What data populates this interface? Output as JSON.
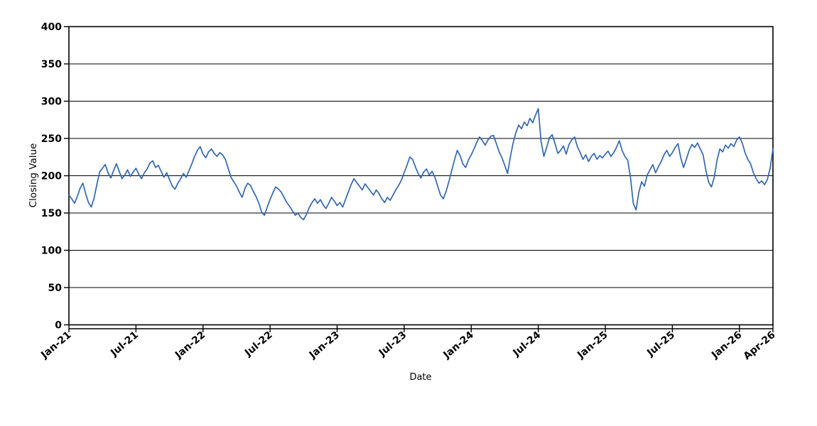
{
  "figure": {
    "background_color": "#ffffff",
    "axis_color": "#000000",
    "line_color": "#3366ae"
  },
  "chart_data": {
    "type": "line",
    "title": "",
    "xlabel": "Date",
    "ylabel": "Closing Value",
    "grid": "horizontal gridlines at every 50 units",
    "legend": "none",
    "ylim": [
      0,
      400
    ],
    "y_ticks": [
      0,
      50,
      100,
      150,
      200,
      250,
      300,
      350,
      400
    ],
    "x_axis": {
      "start_label": "Jan-21",
      "end_label": "Apr-26",
      "range_months": 63,
      "tick_labels": [
        "Jan-21",
        "Jul-21",
        "Jan-22",
        "Jul-22",
        "Jan-23",
        "Jul-23",
        "Jan-24",
        "Jul-24",
        "Jan-25",
        "Jul-25",
        "Jan-26",
        "Apr-26"
      ],
      "tick_month_offsets": [
        0,
        6,
        12,
        18,
        24,
        30,
        36,
        42,
        48,
        54,
        60,
        63
      ],
      "tick_label_rotation_deg": -40
    },
    "series": [
      {
        "name": "Closing Value",
        "color": "#3366ae",
        "points_per_month": 4,
        "values": [
          174,
          169,
          163,
          172,
          183,
          190,
          176,
          164,
          158,
          170,
          188,
          205,
          210,
          215,
          204,
          197,
          207,
          216,
          206,
          196,
          201,
          208,
          199,
          205,
          210,
          202,
          196,
          204,
          209,
          217,
          220,
          211,
          214,
          206,
          198,
          204,
          195,
          186,
          182,
          190,
          196,
          203,
          198,
          207,
          216,
          226,
          234,
          239,
          229,
          224,
          232,
          236,
          230,
          226,
          231,
          228,
          222,
          210,
          198,
          192,
          186,
          178,
          171,
          183,
          190,
          187,
          179,
          172,
          163,
          151,
          147,
          158,
          168,
          177,
          185,
          182,
          178,
          171,
          164,
          159,
          153,
          147,
          150,
          144,
          141,
          148,
          157,
          164,
          169,
          163,
          168,
          161,
          156,
          163,
          171,
          166,
          160,
          164,
          158,
          168,
          178,
          188,
          196,
          191,
          186,
          181,
          189,
          184,
          179,
          174,
          181,
          176,
          169,
          164,
          171,
          167,
          174,
          181,
          187,
          194,
          204,
          214,
          225,
          222,
          212,
          203,
          197,
          205,
          209,
          201,
          206,
          198,
          186,
          174,
          169,
          179,
          192,
          207,
          221,
          234,
          227,
          216,
          211,
          221,
          228,
          236,
          245,
          252,
          247,
          241,
          248,
          253,
          254,
          243,
          232,
          224,
          214,
          203,
          225,
          244,
          258,
          268,
          263,
          272,
          267,
          277,
          271,
          281,
          290,
          246,
          226,
          238,
          251,
          255,
          243,
          230,
          234,
          240,
          229,
          242,
          248,
          252,
          239,
          231,
          222,
          228,
          219,
          226,
          230,
          222,
          227,
          224,
          229,
          233,
          226,
          231,
          238,
          247,
          234,
          226,
          221,
          198,
          163,
          154,
          178,
          192,
          186,
          201,
          208,
          215,
          204,
          212,
          219,
          228,
          234,
          226,
          231,
          238,
          243,
          224,
          211,
          222,
          234,
          242,
          238,
          244,
          236,
          228,
          207,
          191,
          185,
          198,
          221,
          236,
          232,
          241,
          237,
          243,
          239,
          248,
          252,
          244,
          231,
          222,
          216,
          204,
          196,
          190,
          193,
          188,
          195,
          210,
          236
        ]
      }
    ]
  }
}
